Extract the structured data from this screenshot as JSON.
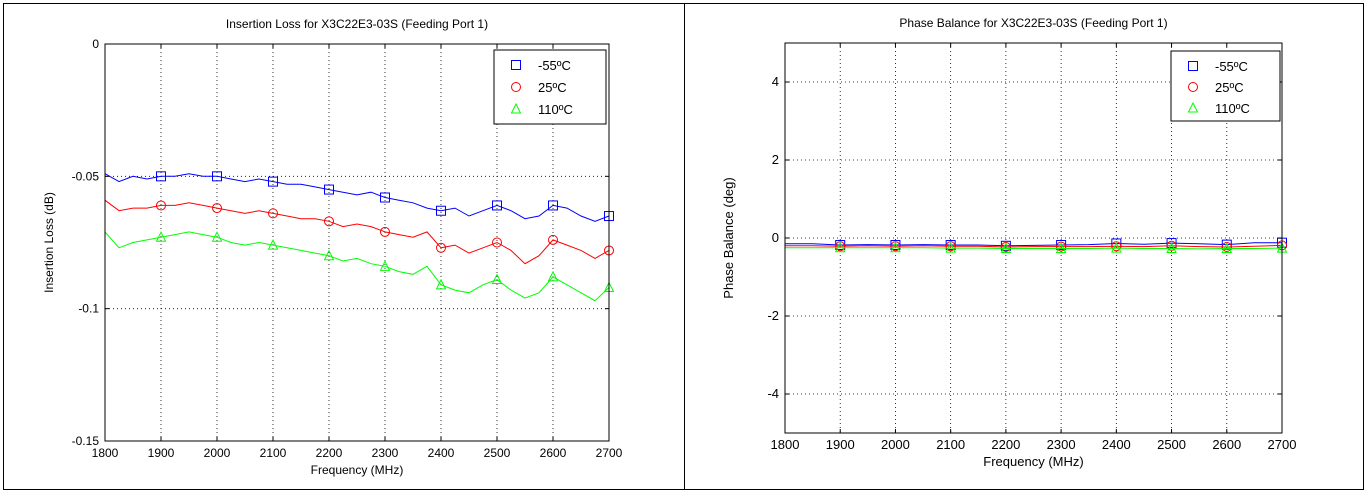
{
  "charts": [
    {
      "type": "line",
      "title": "Insertion Loss for X3C22E3-03S (Feeding Port 1)",
      "xlabel": "Frequency (MHz)",
      "ylabel": "Insertion Loss (dB)",
      "xlim": [
        1800,
        2700
      ],
      "ylim": [
        -0.15,
        0
      ],
      "xticks": [
        1800,
        1900,
        2000,
        2100,
        2200,
        2300,
        2400,
        2500,
        2600,
        2700
      ],
      "yticks": [
        -0.15,
        -0.1,
        -0.05,
        0
      ],
      "ytick_labels": [
        "-0.15",
        "-0.1",
        "-0.05",
        "0"
      ],
      "grid": true,
      "legend": "top-right",
      "x": [
        1800,
        1825,
        1850,
        1875,
        1900,
        1925,
        1950,
        1975,
        2000,
        2025,
        2050,
        2075,
        2100,
        2125,
        2150,
        2175,
        2200,
        2225,
        2250,
        2275,
        2300,
        2325,
        2350,
        2375,
        2400,
        2425,
        2450,
        2475,
        2500,
        2525,
        2550,
        2575,
        2600,
        2625,
        2650,
        2675,
        2700
      ],
      "series": [
        {
          "name": "-55ºC",
          "color": "#0000ff",
          "marker": "square",
          "values": [
            -0.049,
            -0.052,
            -0.05,
            -0.051,
            -0.05,
            -0.05,
            -0.049,
            -0.05,
            -0.05,
            -0.051,
            -0.052,
            -0.051,
            -0.052,
            -0.053,
            -0.053,
            -0.054,
            -0.055,
            -0.056,
            -0.057,
            -0.056,
            -0.058,
            -0.059,
            -0.06,
            -0.062,
            -0.063,
            -0.062,
            -0.065,
            -0.063,
            -0.061,
            -0.063,
            -0.066,
            -0.065,
            -0.061,
            -0.062,
            -0.065,
            -0.067,
            -0.065
          ]
        },
        {
          "name": "25ºC",
          "color": "#ff0000",
          "marker": "circle",
          "values": [
            -0.059,
            -0.063,
            -0.062,
            -0.062,
            -0.061,
            -0.061,
            -0.06,
            -0.061,
            -0.062,
            -0.063,
            -0.064,
            -0.063,
            -0.064,
            -0.065,
            -0.066,
            -0.066,
            -0.067,
            -0.069,
            -0.068,
            -0.069,
            -0.071,
            -0.072,
            -0.073,
            -0.071,
            -0.077,
            -0.076,
            -0.079,
            -0.077,
            -0.075,
            -0.078,
            -0.083,
            -0.08,
            -0.074,
            -0.076,
            -0.078,
            -0.081,
            -0.078
          ]
        },
        {
          "name": "110ºC",
          "color": "#00ff00",
          "marker": "triangle",
          "values": [
            -0.071,
            -0.077,
            -0.075,
            -0.074,
            -0.073,
            -0.072,
            -0.071,
            -0.072,
            -0.073,
            -0.075,
            -0.076,
            -0.075,
            -0.076,
            -0.077,
            -0.078,
            -0.079,
            -0.08,
            -0.082,
            -0.081,
            -0.083,
            -0.084,
            -0.086,
            -0.087,
            -0.084,
            -0.091,
            -0.093,
            -0.094,
            -0.091,
            -0.089,
            -0.093,
            -0.096,
            -0.094,
            -0.088,
            -0.091,
            -0.094,
            -0.097,
            -0.092
          ]
        }
      ]
    },
    {
      "type": "line",
      "title": "Phase Balance for X3C22E3-03S (Feeding Port 1)",
      "xlabel": "Frequency (MHz)",
      "ylabel": "Phase Balance (deg)",
      "xlim": [
        1800,
        2700
      ],
      "ylim": [
        -5,
        5
      ],
      "xticks": [
        1800,
        1900,
        2000,
        2100,
        2200,
        2300,
        2400,
        2500,
        2600,
        2700
      ],
      "yticks": [
        -4,
        -2,
        0,
        2,
        4
      ],
      "ytick_labels": [
        "-4",
        "-2",
        "0",
        "2",
        "4"
      ],
      "grid": true,
      "legend": "top-right",
      "x": [
        1800,
        1850,
        1900,
        1950,
        2000,
        2050,
        2100,
        2150,
        2200,
        2250,
        2300,
        2350,
        2400,
        2450,
        2500,
        2550,
        2600,
        2650,
        2700
      ],
      "series": [
        {
          "name": "-55ºC",
          "color": "#0000ff",
          "marker": "square",
          "values": [
            -0.15,
            -0.15,
            -0.18,
            -0.17,
            -0.18,
            -0.17,
            -0.18,
            -0.18,
            -0.2,
            -0.19,
            -0.18,
            -0.17,
            -0.14,
            -0.16,
            -0.13,
            -0.15,
            -0.17,
            -0.12,
            -0.12
          ]
        },
        {
          "name": "25ºC",
          "color": "#ff0000",
          "marker": "circle",
          "values": [
            -0.2,
            -0.2,
            -0.21,
            -0.2,
            -0.21,
            -0.2,
            -0.21,
            -0.21,
            -0.23,
            -0.22,
            -0.22,
            -0.22,
            -0.21,
            -0.22,
            -0.2,
            -0.22,
            -0.23,
            -0.21,
            -0.19
          ]
        },
        {
          "name": "110ºC",
          "color": "#00ff00",
          "marker": "triangle",
          "values": [
            -0.25,
            -0.25,
            -0.25,
            -0.25,
            -0.25,
            -0.25,
            -0.26,
            -0.26,
            -0.27,
            -0.27,
            -0.27,
            -0.27,
            -0.26,
            -0.27,
            -0.27,
            -0.28,
            -0.27,
            -0.27,
            -0.26
          ]
        }
      ]
    }
  ]
}
